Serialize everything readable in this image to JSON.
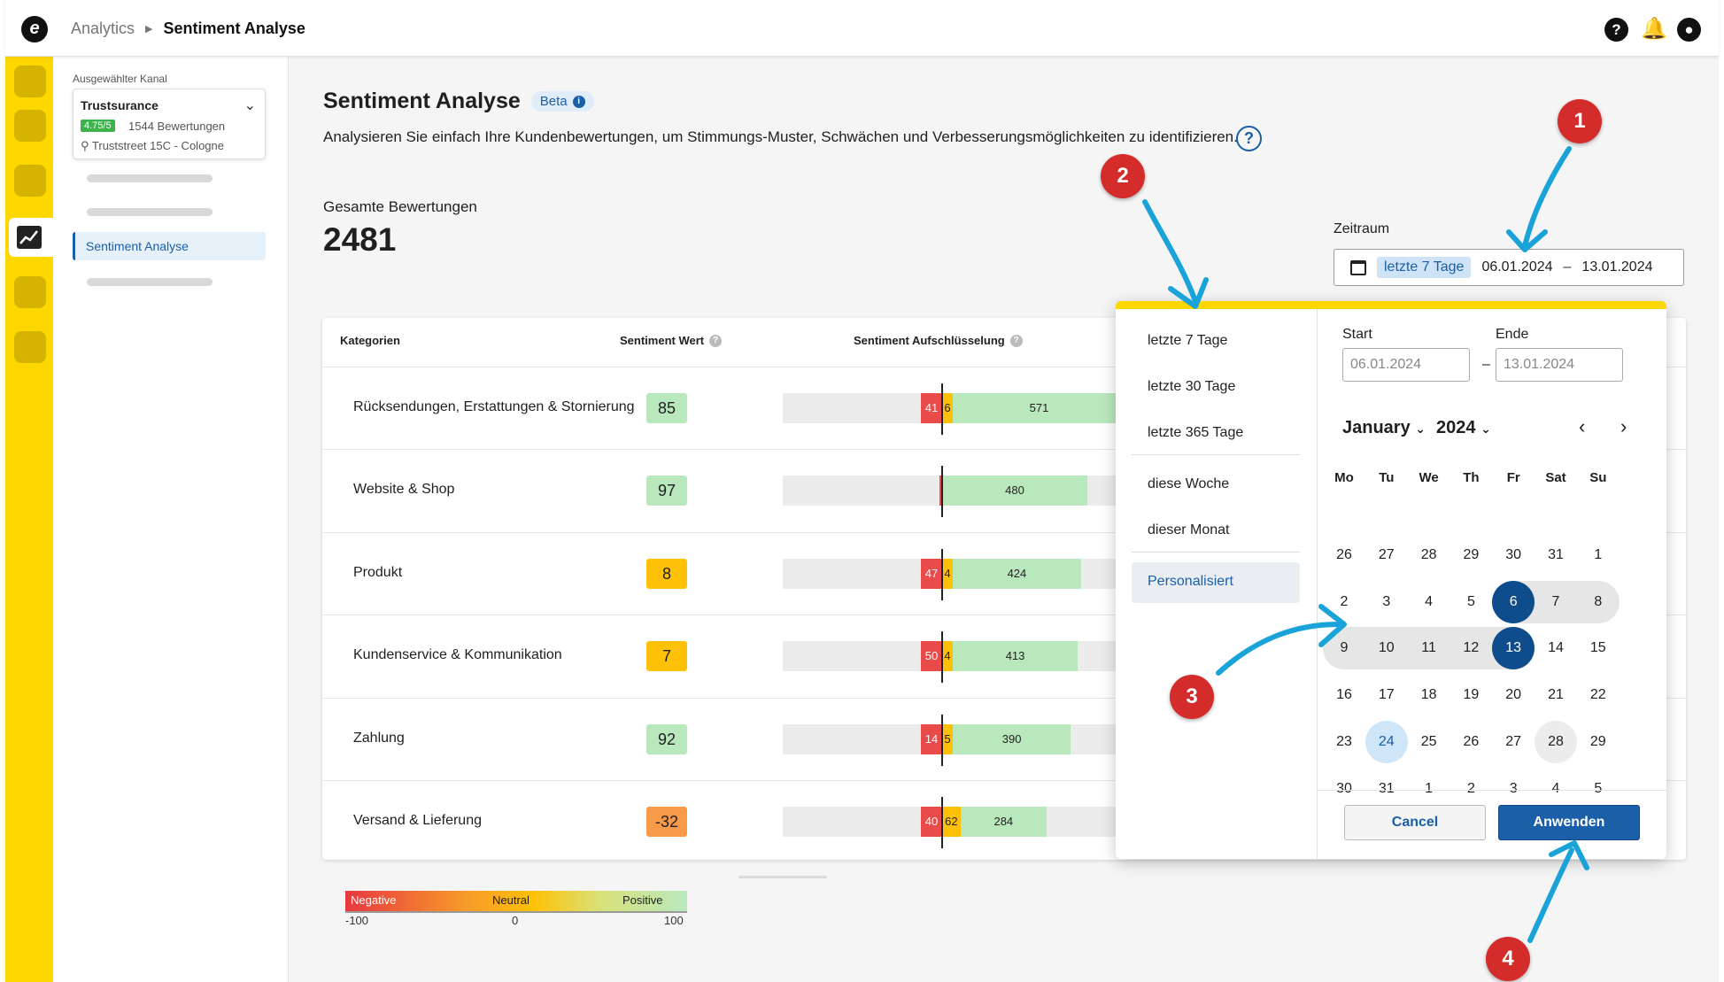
{
  "breadcrumb": {
    "parent": "Analytics",
    "current": "Sentiment Analyse"
  },
  "topbar_icons": [
    "help-icon",
    "bell-icon",
    "user-icon"
  ],
  "sidebar": {
    "channel_label": "Ausgewählter Kanal",
    "channel": {
      "name": "Trustsurance",
      "rating": "4.75/5",
      "reviews": "1544 Bewertungen",
      "address": "Truststreet 15C - Cologne"
    },
    "active_item": "Sentiment Analyse"
  },
  "page": {
    "title": "Sentiment Analyse",
    "badge": "Beta",
    "description": "Analysieren Sie einfach Ihre Kundenbewertungen, um Stimmungs-Muster, Schwächen und Verbesserungsmöglichkeiten zu identifizieren.",
    "total_label": "Gesamte Bewertungen",
    "total_value": "2481"
  },
  "zeitraum": {
    "label": "Zeitraum",
    "chip": "letzte 7 Tage",
    "start": "06.01.2024",
    "dash": "–",
    "end": "13.01.2024"
  },
  "table": {
    "headers": {
      "category": "Kategorien",
      "score": "Sentiment Wert",
      "breakdown": "Sentiment Aufschlüsselung"
    },
    "rows": [
      {
        "category": "Rücksendungen, Erstattungen & Stornierung",
        "score": "85",
        "score_color": "#b9e8bd",
        "neg": 41,
        "neu": 6,
        "pos": 571
      },
      {
        "category": "Website & Shop",
        "score": "97",
        "score_color": "#b9e8bd",
        "neg": "",
        "neu": "",
        "pos": 480
      },
      {
        "category": "Produkt",
        "score": "8",
        "score_color": "#ffc107",
        "neg": 47,
        "neu": 4,
        "pos": 424
      },
      {
        "category": "Kundenservice & Kommunikation",
        "score": "7",
        "score_color": "#ffc107",
        "neg": 50,
        "neu": 4,
        "pos": 413
      },
      {
        "category": "Zahlung",
        "score": "92",
        "score_color": "#b9e8bd",
        "neg": 14,
        "neu": 5,
        "pos": 390
      },
      {
        "category": "Versand & Lieferung",
        "score": "-32",
        "score_color": "#f79a4a",
        "neg": 40,
        "neu": 62,
        "pos": 284
      }
    ]
  },
  "legend": {
    "negative": "Negative",
    "neutral": "Neutral",
    "positive": "Positive",
    "min": "-100",
    "mid": "0",
    "max": "100"
  },
  "datepicker": {
    "presets": [
      "letzte 7 Tage",
      "letzte 30 Tage",
      "letzte 365 Tage",
      "diese Woche",
      "dieser Monat",
      "Personalisiert"
    ],
    "selected_preset": "Personalisiert",
    "start_label": "Start",
    "end_label": "Ende",
    "start_placeholder": "06.01.2024",
    "end_placeholder": "13.01.2024",
    "month": "January",
    "year": "2024",
    "weekdays": [
      "Mo",
      "Tu",
      "We",
      "Th",
      "Fr",
      "Sat",
      "Su"
    ],
    "weeks": [
      [
        "26",
        "27",
        "28",
        "29",
        "30",
        "31",
        "1"
      ],
      [
        "2",
        "3",
        "4",
        "5",
        "6",
        "7",
        "8"
      ],
      [
        "9",
        "10",
        "11",
        "12",
        "13",
        "14",
        "15"
      ],
      [
        "16",
        "17",
        "18",
        "19",
        "20",
        "21",
        "22"
      ],
      [
        "23",
        "24",
        "25",
        "26",
        "27",
        "28",
        "29"
      ],
      [
        "30",
        "31",
        "1",
        "2",
        "3",
        "4",
        "5"
      ]
    ],
    "cancel": "Cancel",
    "apply": "Anwenden"
  },
  "annotations": [
    "1",
    "2",
    "3",
    "4"
  ],
  "colors": {
    "accent": "#1a5fa8",
    "rail": "#ffd700",
    "negative": "#e94a4a",
    "neutral": "#ffc107",
    "positive": "#b9e8bd",
    "marker": "#d42b2b",
    "arrow": "#1aa3d9"
  }
}
